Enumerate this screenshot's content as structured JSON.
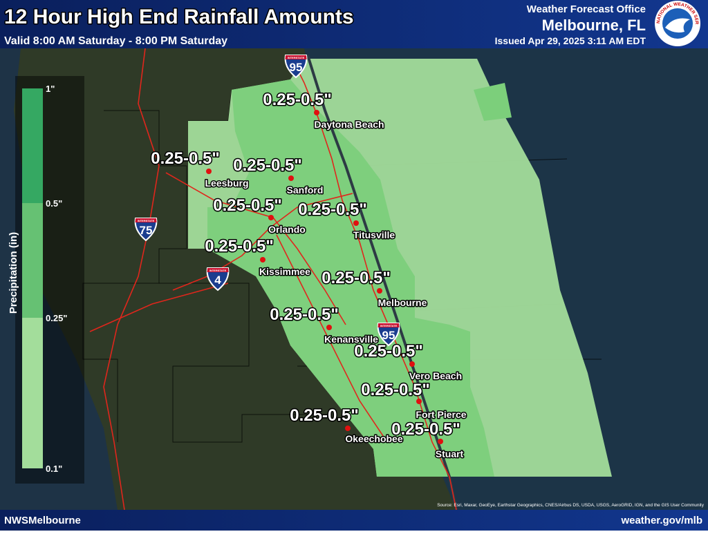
{
  "header": {
    "title": "12 Hour High End Rainfall Amounts",
    "subtitle": "Valid 8:00 AM Saturday - 8:00 PM Saturday",
    "office": "Weather Forecast Office",
    "location": "Melbourne, FL",
    "issued": "Issued Apr 29, 2025 3:11 AM EDT",
    "logo_text": "NATIONAL WEATHER SERVICE"
  },
  "legend": {
    "title": "Precipitation (in)",
    "ticks": [
      "1\"",
      "0.5\"",
      "0.25\"",
      "0.1\""
    ],
    "colors": [
      "#35a862",
      "#66c173",
      "#a3dd9b"
    ]
  },
  "places": [
    {
      "name": "Daytona Beach",
      "amount": "0.25-0.5\""
    },
    {
      "name": "Leesburg",
      "amount": "0.25-0.5\""
    },
    {
      "name": "Sanford",
      "amount": "0.25-0.5\""
    },
    {
      "name": "Orlando",
      "amount": "0.25-0.5\""
    },
    {
      "name": "Titusville",
      "amount": "0.25-0.5\""
    },
    {
      "name": "Kissimmee",
      "amount": "0.25-0.5\""
    },
    {
      "name": "Melbourne",
      "amount": "0.25-0.5\""
    },
    {
      "name": "Kenansville",
      "amount": "0.25-0.5\""
    },
    {
      "name": "Vero Beach",
      "amount": "0.25-0.5\""
    },
    {
      "name": "Fort Pierce",
      "amount": "0.25-0.5\""
    },
    {
      "name": "Okeechobee",
      "amount": "0.25-0.5\""
    },
    {
      "name": "Stuart",
      "amount": "0.25-0.5\""
    }
  ],
  "interstates": [
    {
      "label": "INTERSTATE",
      "number": "95"
    },
    {
      "label": "INTERSTATE",
      "number": "75"
    },
    {
      "label": "INTERSTATE",
      "number": "4"
    },
    {
      "label": "INTERSTATE",
      "number": "95"
    }
  ],
  "map": {
    "source": "Source: Esri, Maxar, GeoEye, Earthstar Geographics, CNES/Airbus DS, USDA, USGS, AeroGRID, IGN, and the GIS User Community"
  },
  "footer": {
    "left": "NWSMelbourne",
    "right": "weather.gov/mlb"
  }
}
